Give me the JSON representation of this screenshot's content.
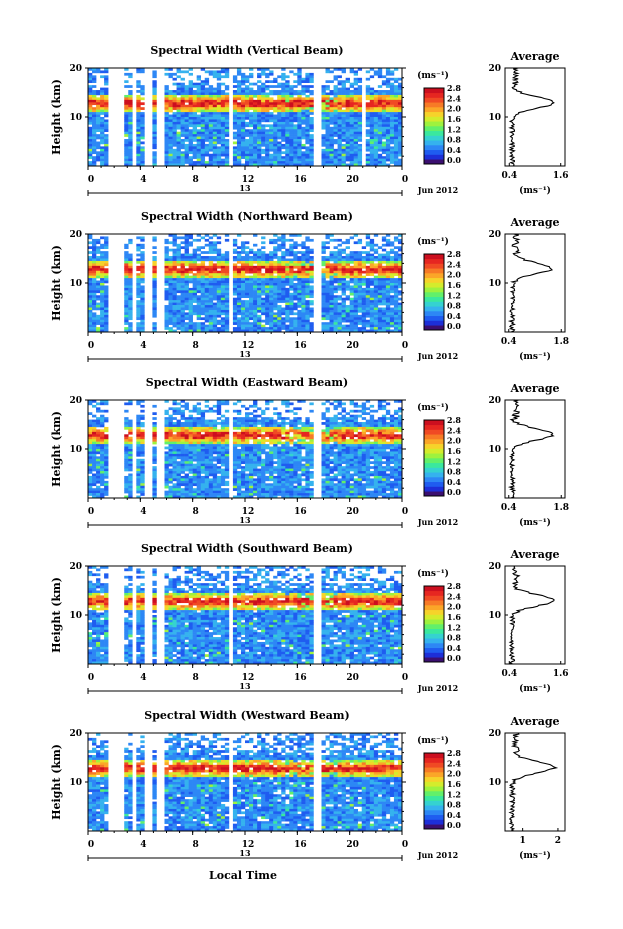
{
  "page": {
    "xlabel": "Local Time",
    "date_label": "Jun 2012",
    "ylabel": "Height (km)"
  },
  "colorbar": {
    "unit_label": "(ms⁻¹)",
    "ticks": [
      "2.8",
      "2.4",
      "2.0",
      "1.6",
      "1.2",
      "0.8",
      "0.4",
      "0.0"
    ],
    "colors": [
      "#3b0f70",
      "#1d2fd8",
      "#1f5cf0",
      "#2d87f5",
      "#35b2ee",
      "#35d2d0",
      "#3ae89e",
      "#62f06a",
      "#9ef23e",
      "#d4ec2c",
      "#f6d32a",
      "#fba628",
      "#f77a26",
      "#f04a24",
      "#e62621",
      "#cc0f1f"
    ]
  },
  "chart_data": [
    {
      "type": "heatmap",
      "title": "Spectral Width (Vertical Beam)",
      "ylabel": "Height (km)",
      "xticks": [
        "0",
        "4",
        "8",
        "12",
        "16",
        "20",
        "0"
      ],
      "day_label": "13",
      "yticks": [
        "20",
        "10"
      ],
      "ylim": [
        0,
        20
      ],
      "xlim": [
        0,
        24
      ],
      "gaps_hours": [
        [
          1.5,
          2.9
        ],
        [
          3.3,
          3.7
        ],
        [
          4.3,
          4.8
        ],
        [
          5.3,
          5.7
        ],
        [
          10.7,
          11.1
        ],
        [
          17.3,
          17.7
        ],
        [
          21.0,
          21.3
        ]
      ],
      "peak_height_km": 13,
      "profile": {
        "title": "Average",
        "xlabel": "(ms⁻¹)",
        "xticks": [
          "0.4",
          "1.6"
        ],
        "yticks": [
          "20",
          "10"
        ],
        "xlim": [
          0.3,
          1.7
        ],
        "peak_height_km": 13,
        "peak_value": 1.45
      }
    },
    {
      "type": "heatmap",
      "title": "Spectral Width (Northward Beam)",
      "ylabel": "Height (km)",
      "xticks": [
        "0",
        "4",
        "8",
        "12",
        "16",
        "20",
        "0"
      ],
      "day_label": "13",
      "yticks": [
        "20",
        "10"
      ],
      "ylim": [
        0,
        20
      ],
      "xlim": [
        0,
        24
      ],
      "gaps_hours": [
        [
          1.5,
          2.9
        ],
        [
          3.3,
          3.7
        ],
        [
          4.3,
          4.8
        ],
        [
          5.3,
          5.7
        ],
        [
          10.7,
          11.1
        ],
        [
          17.3,
          17.7
        ]
      ],
      "peak_height_km": 13,
      "profile": {
        "title": "Average",
        "xlabel": "(ms⁻¹)",
        "xticks": [
          "0.4",
          "1.8"
        ],
        "yticks": [
          "20",
          "10"
        ],
        "xlim": [
          0.3,
          1.9
        ],
        "peak_height_km": 13,
        "peak_value": 1.55
      }
    },
    {
      "type": "heatmap",
      "title": "Spectral Width (Eastward Beam)",
      "ylabel": "Height (km)",
      "xticks": [
        "0",
        "4",
        "8",
        "12",
        "16",
        "20",
        "0"
      ],
      "day_label": "13",
      "yticks": [
        "20",
        "10"
      ],
      "ylim": [
        0,
        20
      ],
      "xlim": [
        0,
        24
      ],
      "gaps_hours": [
        [
          1.5,
          2.9
        ],
        [
          3.3,
          3.7
        ],
        [
          4.3,
          4.8
        ],
        [
          5.3,
          5.7
        ],
        [
          10.7,
          11.1
        ],
        [
          17.3,
          17.7
        ]
      ],
      "peak_height_km": 13,
      "profile": {
        "title": "Average",
        "xlabel": "(ms⁻¹)",
        "xticks": [
          "0.4",
          "1.8"
        ],
        "yticks": [
          "20",
          "10"
        ],
        "xlim": [
          0.3,
          1.9
        ],
        "peak_height_km": 13,
        "peak_value": 1.6
      }
    },
    {
      "type": "heatmap",
      "title": "Spectral Width (Southward Beam)",
      "ylabel": "Height (km)",
      "xticks": [
        "0",
        "4",
        "8",
        "12",
        "16",
        "20",
        "0"
      ],
      "day_label": "13",
      "yticks": [
        "20",
        "10"
      ],
      "ylim": [
        0,
        20
      ],
      "xlim": [
        0,
        24
      ],
      "gaps_hours": [
        [
          1.5,
          2.9
        ],
        [
          3.3,
          3.7
        ],
        [
          4.3,
          4.8
        ],
        [
          5.3,
          5.7
        ],
        [
          10.7,
          11.1
        ],
        [
          17.3,
          17.7
        ]
      ],
      "peak_height_km": 13,
      "profile": {
        "title": "Average",
        "xlabel": "(ms⁻¹)",
        "xticks": [
          "0.4",
          "1.6"
        ],
        "yticks": [
          "20",
          "10"
        ],
        "xlim": [
          0.3,
          1.7
        ],
        "peak_height_km": 13,
        "peak_value": 1.45
      }
    },
    {
      "type": "heatmap",
      "title": "Spectral Width (Westward Beam)",
      "ylabel": "Height (km)",
      "xticks": [
        "0",
        "4",
        "8",
        "12",
        "16",
        "20",
        "0"
      ],
      "day_label": "13",
      "yticks": [
        "20",
        "10"
      ],
      "ylim": [
        0,
        20
      ],
      "xlim": [
        0,
        24
      ],
      "gaps_hours": [
        [
          1.5,
          2.9
        ],
        [
          3.3,
          3.7
        ],
        [
          4.3,
          4.8
        ],
        [
          5.3,
          5.7
        ],
        [
          10.7,
          11.1
        ],
        [
          17.3,
          17.7
        ]
      ],
      "peak_height_km": 13,
      "profile": {
        "title": "Average",
        "xlabel": "(ms⁻¹)",
        "xticks": [
          "1",
          "2"
        ],
        "yticks": [
          "20",
          "10"
        ],
        "xlim": [
          0.5,
          2.2
        ],
        "peak_height_km": 13,
        "peak_value": 1.9
      }
    }
  ]
}
